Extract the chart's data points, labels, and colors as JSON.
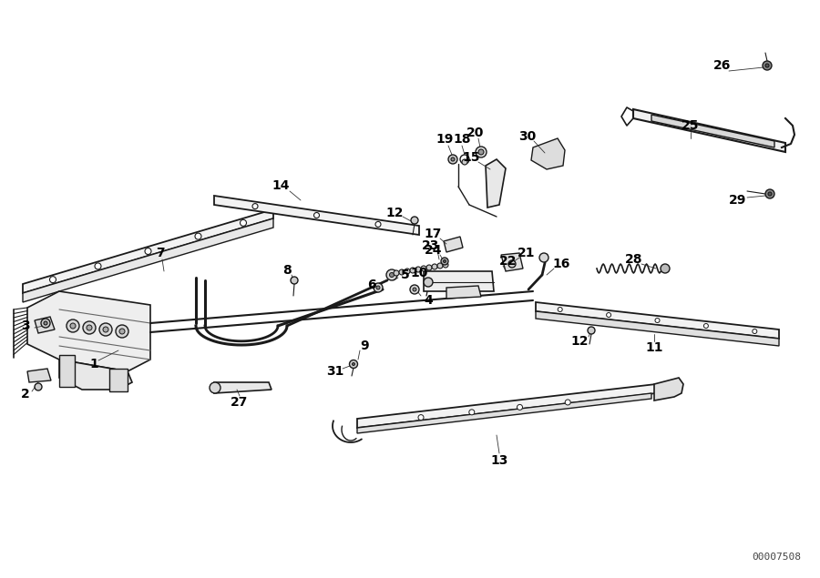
{
  "background_color": "#ffffff",
  "line_color": "#1a1a1a",
  "watermark": "00007508",
  "fig_w": 9.0,
  "fig_h": 6.35,
  "dpi": 100
}
